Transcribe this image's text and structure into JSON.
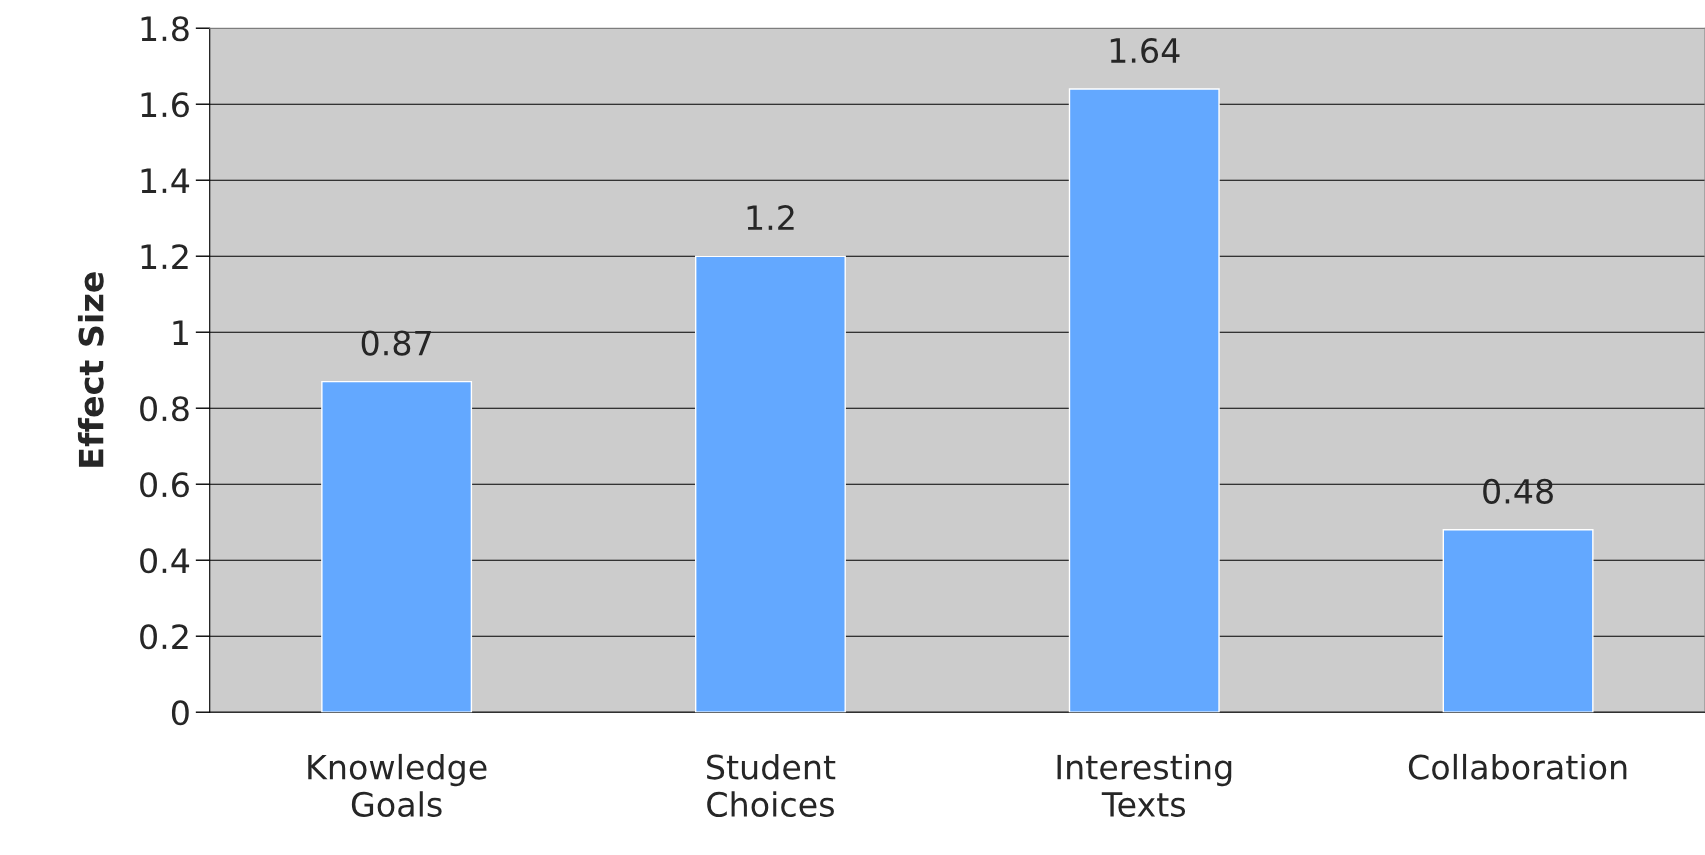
{
  "chart_data": {
    "type": "bar",
    "ylabel": "Effect Size",
    "categories": [
      "Knowledge Goals",
      "Student Choices",
      "Interesting Texts",
      "Collaboration"
    ],
    "values": [
      0.87,
      1.2,
      1.64,
      0.48
    ],
    "color": "#63a8ff",
    "ylim": [
      0,
      1.8
    ],
    "yticks": [
      0,
      0.2,
      0.4,
      0.6,
      0.8,
      1,
      1.2,
      1.4,
      1.6,
      1.8
    ],
    "grid": "y",
    "data_labels": true
  }
}
